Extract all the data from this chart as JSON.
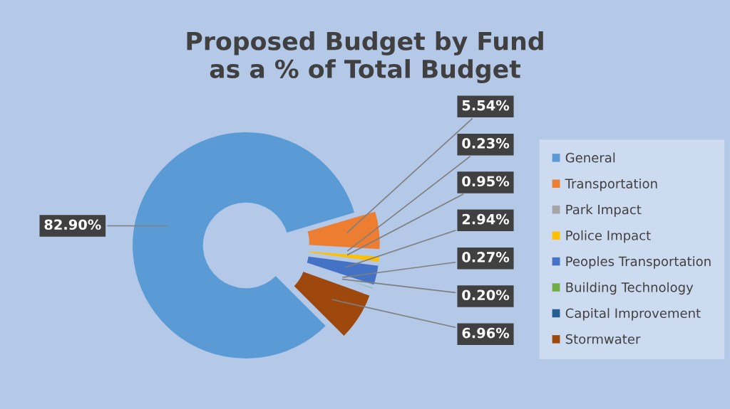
{
  "chart_data": {
    "type": "donut",
    "title": "Proposed Budget by Fund\nas a % of Total Budget",
    "categories": [
      "General",
      "Transportation",
      "Park Impact",
      "Police Impact",
      "Peoples Transportation",
      "Building Technology",
      "Capital Improvement",
      "Stormwater"
    ],
    "values": [
      82.9,
      5.54,
      0.23,
      0.95,
      2.94,
      0.27,
      0.2,
      6.96
    ],
    "colors": [
      "#5b9bd5",
      "#ed7d31",
      "#a5a5a5",
      "#ffc000",
      "#4472c4",
      "#70ad47",
      "#255e91",
      "#9e480e"
    ],
    "value_labels": [
      "82.90%",
      "5.54%",
      "0.23%",
      "0.95%",
      "2.94%",
      "0.27%",
      "0.20%",
      "6.96%"
    ],
    "legend": "right"
  }
}
